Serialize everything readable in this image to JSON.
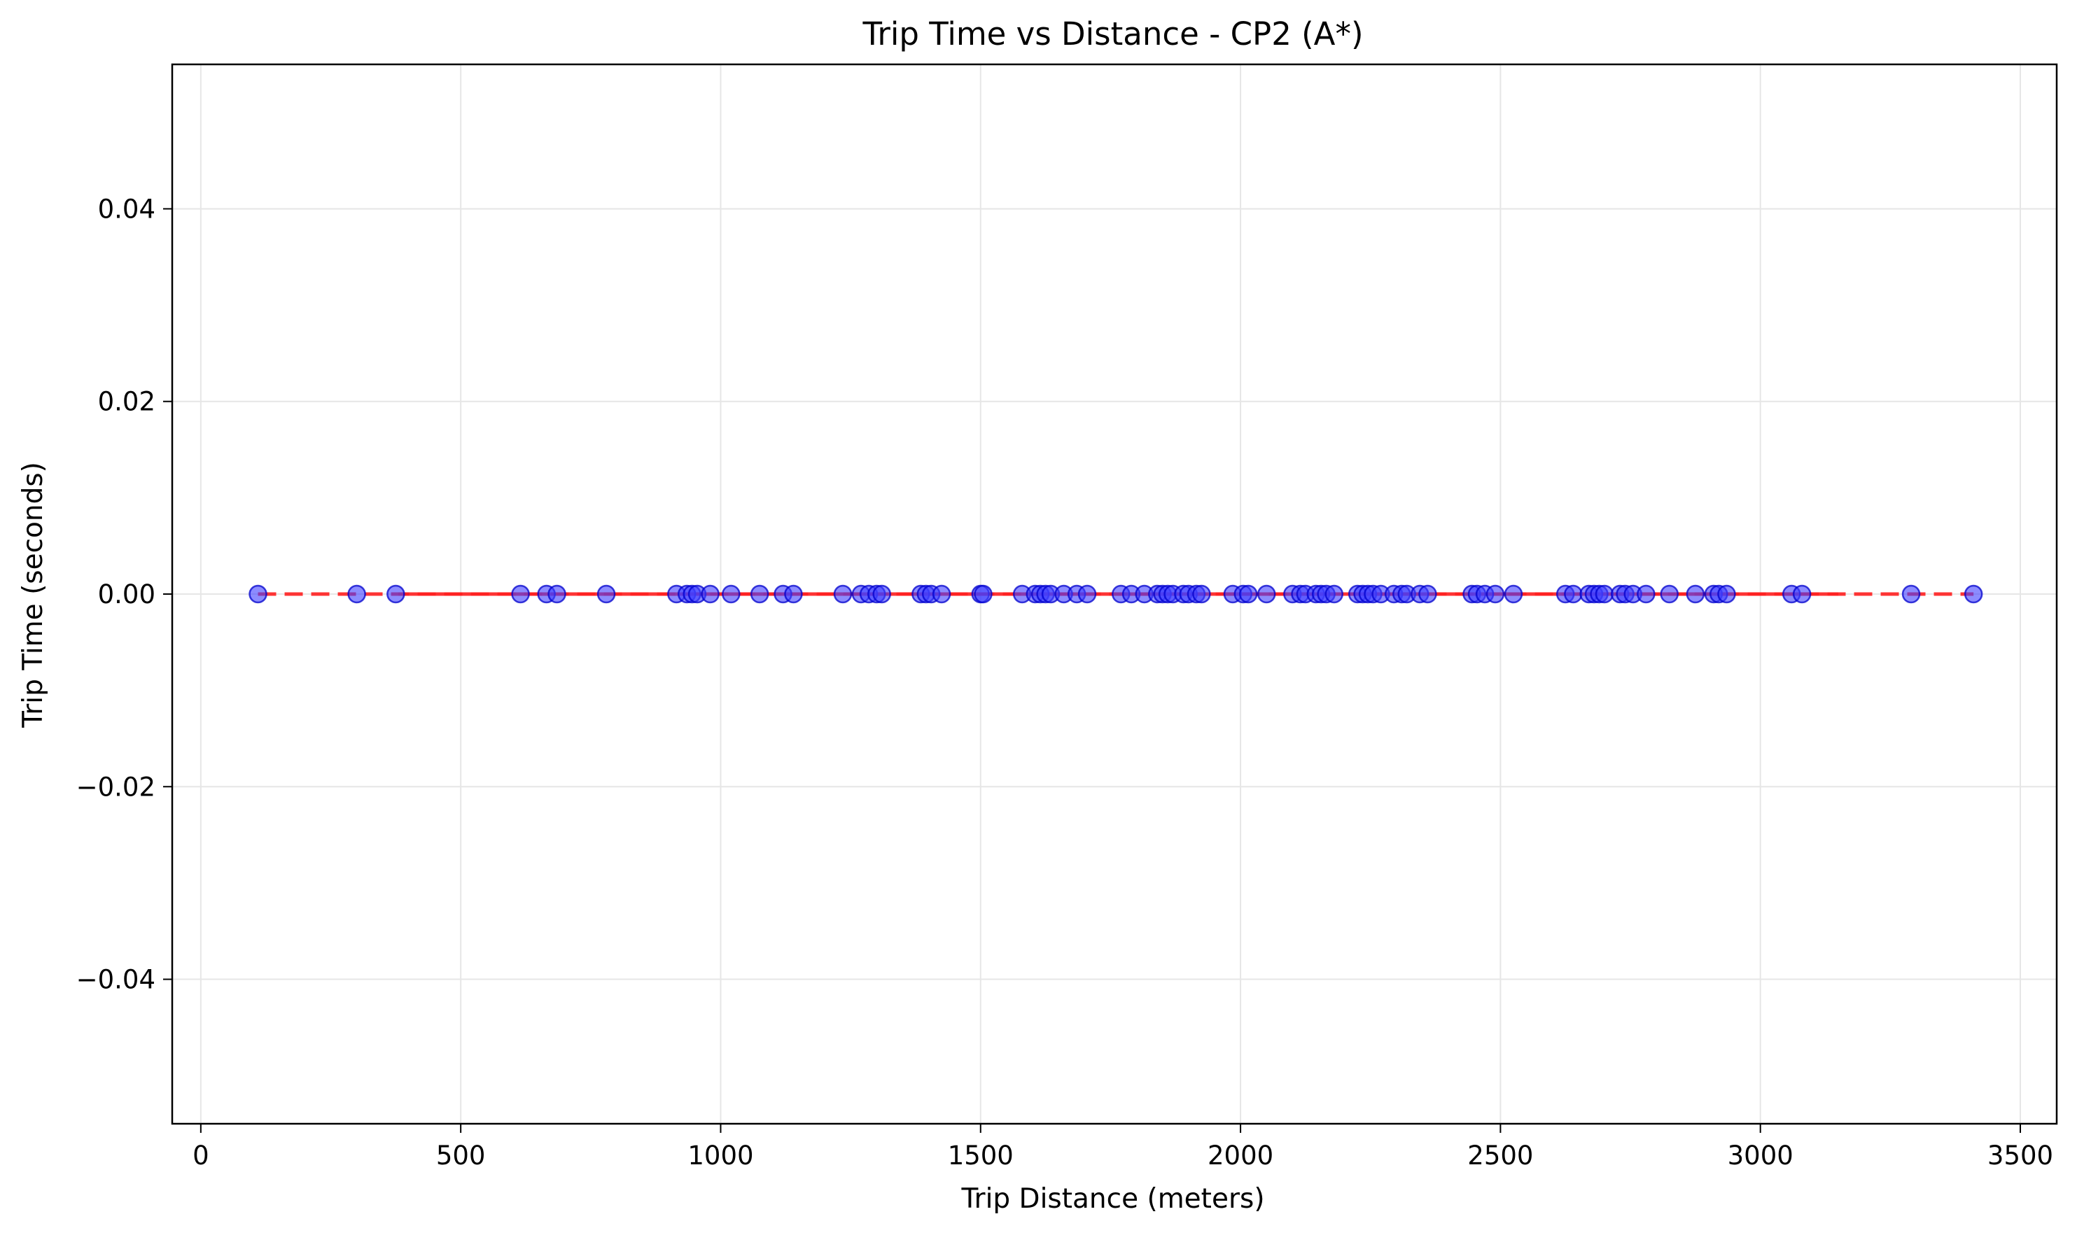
{
  "chart_data": {
    "type": "scatter",
    "title": "Trip Time vs Distance - CP2 (A*)",
    "xlabel": "Trip Distance (meters)",
    "ylabel": "Trip Time (seconds)",
    "xlim": [
      -55,
      3570
    ],
    "ylim": [
      -0.055,
      0.055
    ],
    "x_ticks": [
      0,
      500,
      1000,
      1500,
      2000,
      2500,
      3000,
      3500
    ],
    "x_tick_labels": [
      "0",
      "500",
      "1000",
      "1500",
      "2000",
      "2500",
      "3000",
      "3500"
    ],
    "y_ticks": [
      0.04,
      0.02,
      0.0,
      -0.02,
      -0.04
    ],
    "y_tick_labels": [
      "0.04",
      "0.02",
      "0.00",
      "−0.02",
      "−0.04"
    ],
    "grid": true,
    "colors": {
      "points": "#4040ff",
      "point_edge": "#0000cc",
      "fit_line": "#ff2020",
      "grid": "#e6e6e6"
    },
    "series": [
      {
        "kind": "points",
        "x": [
          110,
          300,
          375,
          615,
          665,
          685,
          780,
          915,
          935,
          945,
          955,
          980,
          1020,
          1075,
          1120,
          1140,
          1235,
          1270,
          1285,
          1300,
          1310,
          1385,
          1395,
          1405,
          1425,
          1500,
          1505,
          1580,
          1605,
          1615,
          1625,
          1635,
          1660,
          1685,
          1705,
          1770,
          1790,
          1815,
          1840,
          1850,
          1860,
          1870,
          1890,
          1900,
          1915,
          1925,
          1985,
          2005,
          2015,
          2050,
          2100,
          2115,
          2125,
          2145,
          2155,
          2165,
          2180,
          2225,
          2235,
          2245,
          2255,
          2270,
          2295,
          2310,
          2320,
          2345,
          2360,
          2445,
          2455,
          2470,
          2490,
          2525,
          2625,
          2640,
          2670,
          2680,
          2690,
          2700,
          2730,
          2740,
          2755,
          2780,
          2825,
          2875,
          2910,
          2920,
          2935,
          3060,
          3080,
          3290,
          3410
        ],
        "y": [
          0,
          0,
          0,
          0,
          0,
          0,
          0,
          0,
          0,
          0,
          0,
          0,
          0,
          0,
          0,
          0,
          0,
          0,
          0,
          0,
          0,
          0,
          0,
          0,
          0,
          0,
          0,
          0,
          0,
          0,
          0,
          0,
          0,
          0,
          0,
          0,
          0,
          0,
          0,
          0,
          0,
          0,
          0,
          0,
          0,
          0,
          0,
          0,
          0,
          0,
          0,
          0,
          0,
          0,
          0,
          0,
          0,
          0,
          0,
          0,
          0,
          0,
          0,
          0,
          0,
          0,
          0,
          0,
          0,
          0,
          0,
          0,
          0,
          0,
          0,
          0,
          0,
          0,
          0,
          0,
          0,
          0,
          0,
          0,
          0,
          0,
          0,
          0,
          0,
          0,
          0
        ]
      },
      {
        "kind": "fit-line",
        "x": [
          110,
          3410
        ],
        "y": [
          0,
          0
        ]
      }
    ]
  }
}
